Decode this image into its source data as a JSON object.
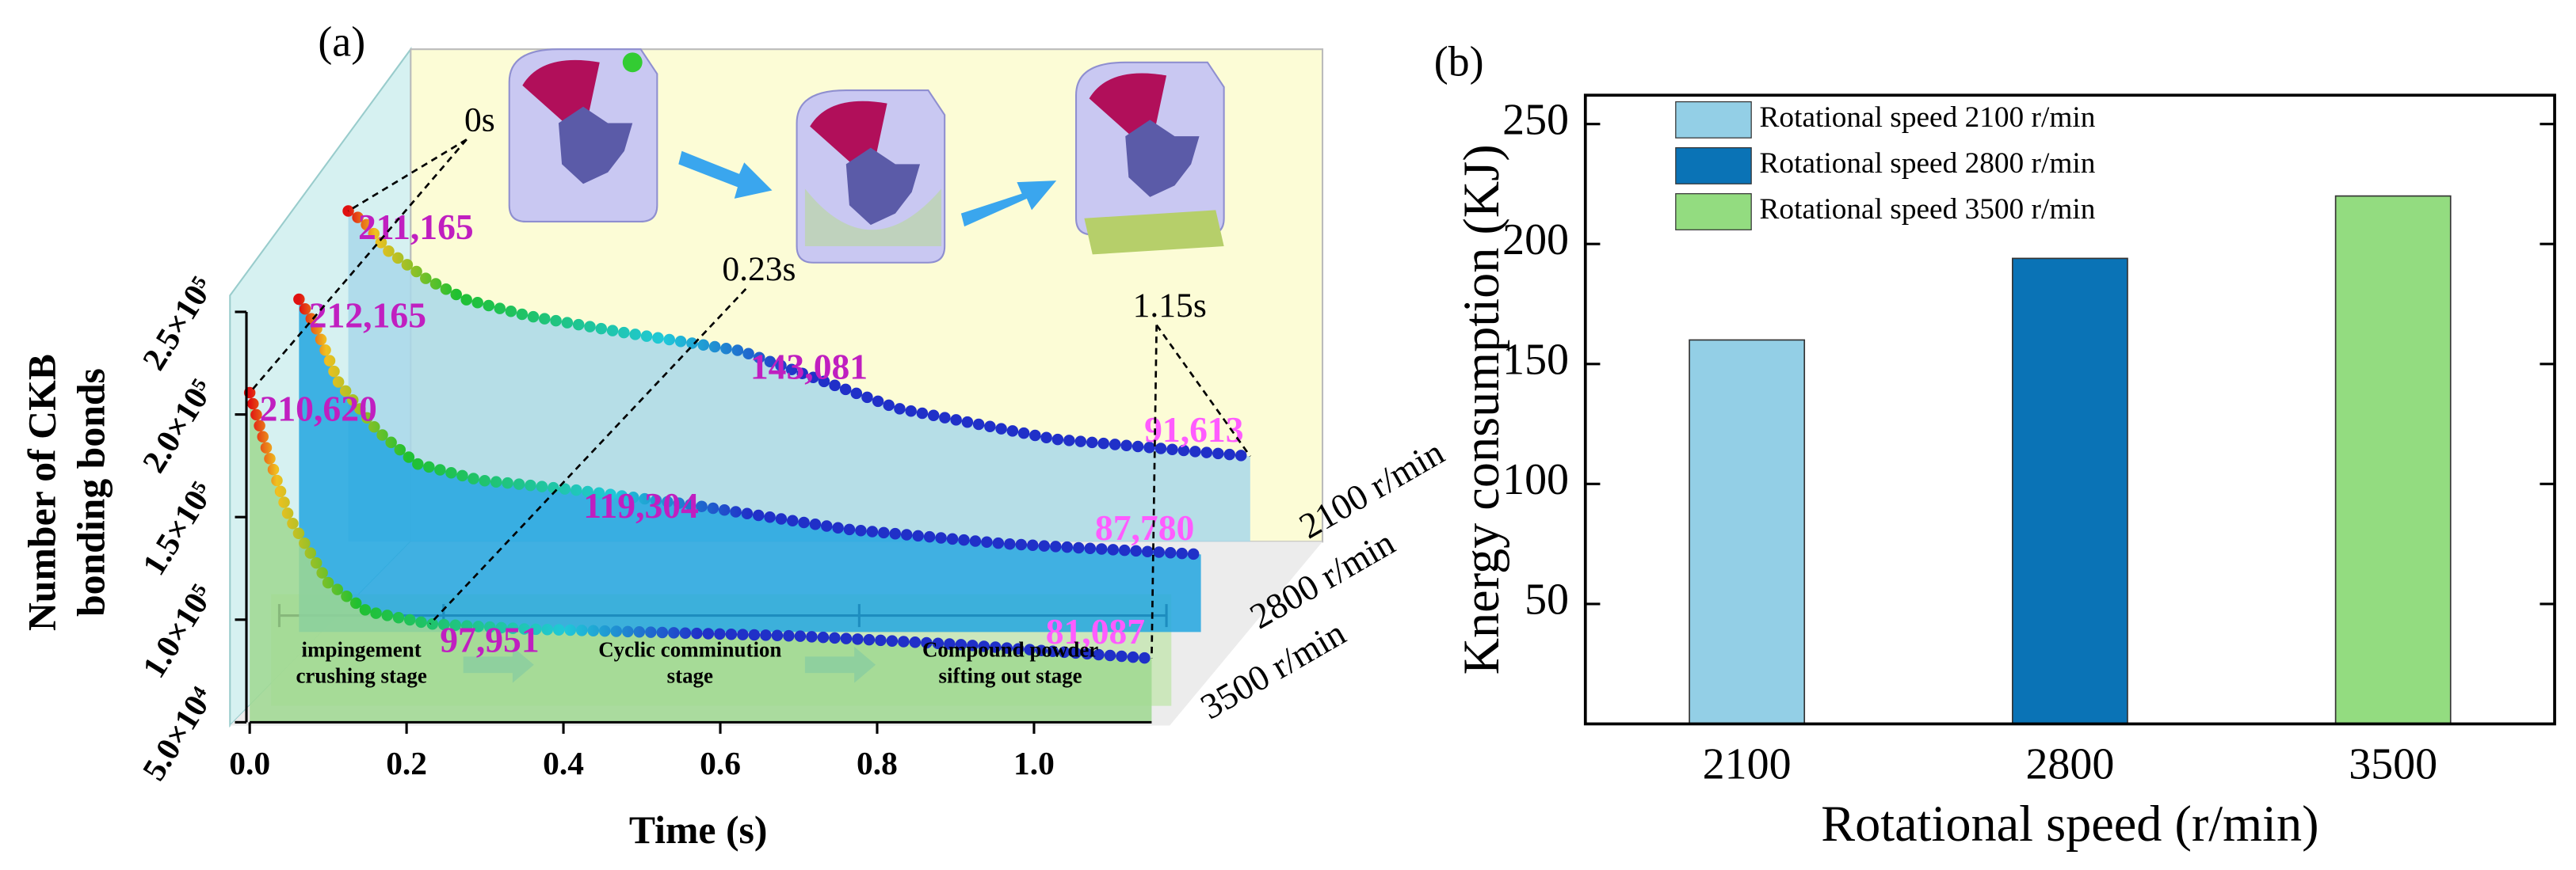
{
  "chart_data": [
    {
      "type": "line",
      "panel_label": "(a)",
      "xlabel": "Time (s)",
      "ylabel": [
        "Number of CKB",
        "bonding bonds"
      ],
      "x": [
        0,
        0.02,
        0.05,
        0.1,
        0.15,
        0.23,
        0.35,
        0.5,
        0.7,
        0.9,
        1.15
      ],
      "xlim": [
        0,
        1.15
      ],
      "xticks": [
        {
          "value": 0,
          "label": "0.0"
        },
        0.2,
        0.4,
        0.6,
        0.8,
        {
          "value": 1,
          "label": "1.0"
        }
      ],
      "ylim": [
        50000,
        250000
      ],
      "yticks": [
        {
          "value": 50000,
          "label": "5.0×10⁴"
        },
        {
          "value": 100000,
          "label": "1.0×10⁵"
        },
        {
          "value": 150000,
          "label": "1.5×10⁵"
        },
        {
          "value": 200000,
          "label": "2.0×10⁵"
        },
        {
          "value": 250000,
          "label": "2.5×10⁵"
        }
      ],
      "line_colormap": [
        "#e01010",
        "#f0c020",
        "#20c030",
        "#20c8d8",
        "#2030c8"
      ],
      "series": [
        {
          "name": "2100 r/min",
          "color": "#a9d8ea",
          "values": [
            211165,
            206000,
            192000,
            178000,
            168000,
            160000,
            152000,
            143081,
            115000,
            100000,
            91613
          ],
          "value_labels": [
            "211,165",
            null,
            null,
            null,
            null,
            null,
            null,
            "143,081",
            null,
            null,
            "91,613"
          ]
        },
        {
          "name": "2800 r/min",
          "color": "#22a6e0",
          "values": [
            212165,
            200000,
            172000,
            148000,
            132000,
            124000,
            119304,
            112000,
            100000,
            93000,
            87780
          ],
          "value_labels": [
            "212,165",
            null,
            null,
            null,
            null,
            null,
            "119,304",
            null,
            null,
            null,
            "87,780"
          ]
        },
        {
          "name": "3500 r/min",
          "color": "#9fd890",
          "values": [
            210620,
            185000,
            150000,
            118000,
            104000,
            97951,
            95500,
            94000,
            92000,
            88000,
            81087
          ],
          "value_labels": [
            "210,620",
            null,
            null,
            null,
            null,
            "97,951",
            null,
            null,
            null,
            null,
            "81,087"
          ]
        }
      ],
      "annotations": [
        {
          "text": "0s",
          "x": 0
        },
        {
          "text": "0.23s",
          "x": 0.23
        },
        {
          "text": "1.15s",
          "x": 1.15
        }
      ],
      "stages": [
        [
          "impingement",
          "crushing stage"
        ],
        [
          "Cyclic comminution",
          "stage"
        ],
        [
          "Compound powder",
          "sifting out stage"
        ]
      ]
    },
    {
      "type": "bar",
      "panel_label": "(b)",
      "xlabel": "Rotational speed (r/min)",
      "ylabel": "Knergy consumption (KJ)",
      "categories": [
        "2100",
        "2800",
        "3500"
      ],
      "ylim": [
        0,
        262
      ],
      "yticks": [
        50,
        100,
        150,
        200,
        250
      ],
      "series": [
        {
          "name": "Rotational speed 2100 r/min",
          "color": "#93cfe6",
          "values": [
            160,
            null,
            null
          ]
        },
        {
          "name": "Rotational speed 2800 r/min",
          "color": "#0a73b6",
          "values": [
            null,
            194,
            null
          ]
        },
        {
          "name": "Rotational speed 3500 r/min",
          "color": "#93dc80",
          "values": [
            null,
            null,
            220
          ]
        }
      ]
    }
  ]
}
